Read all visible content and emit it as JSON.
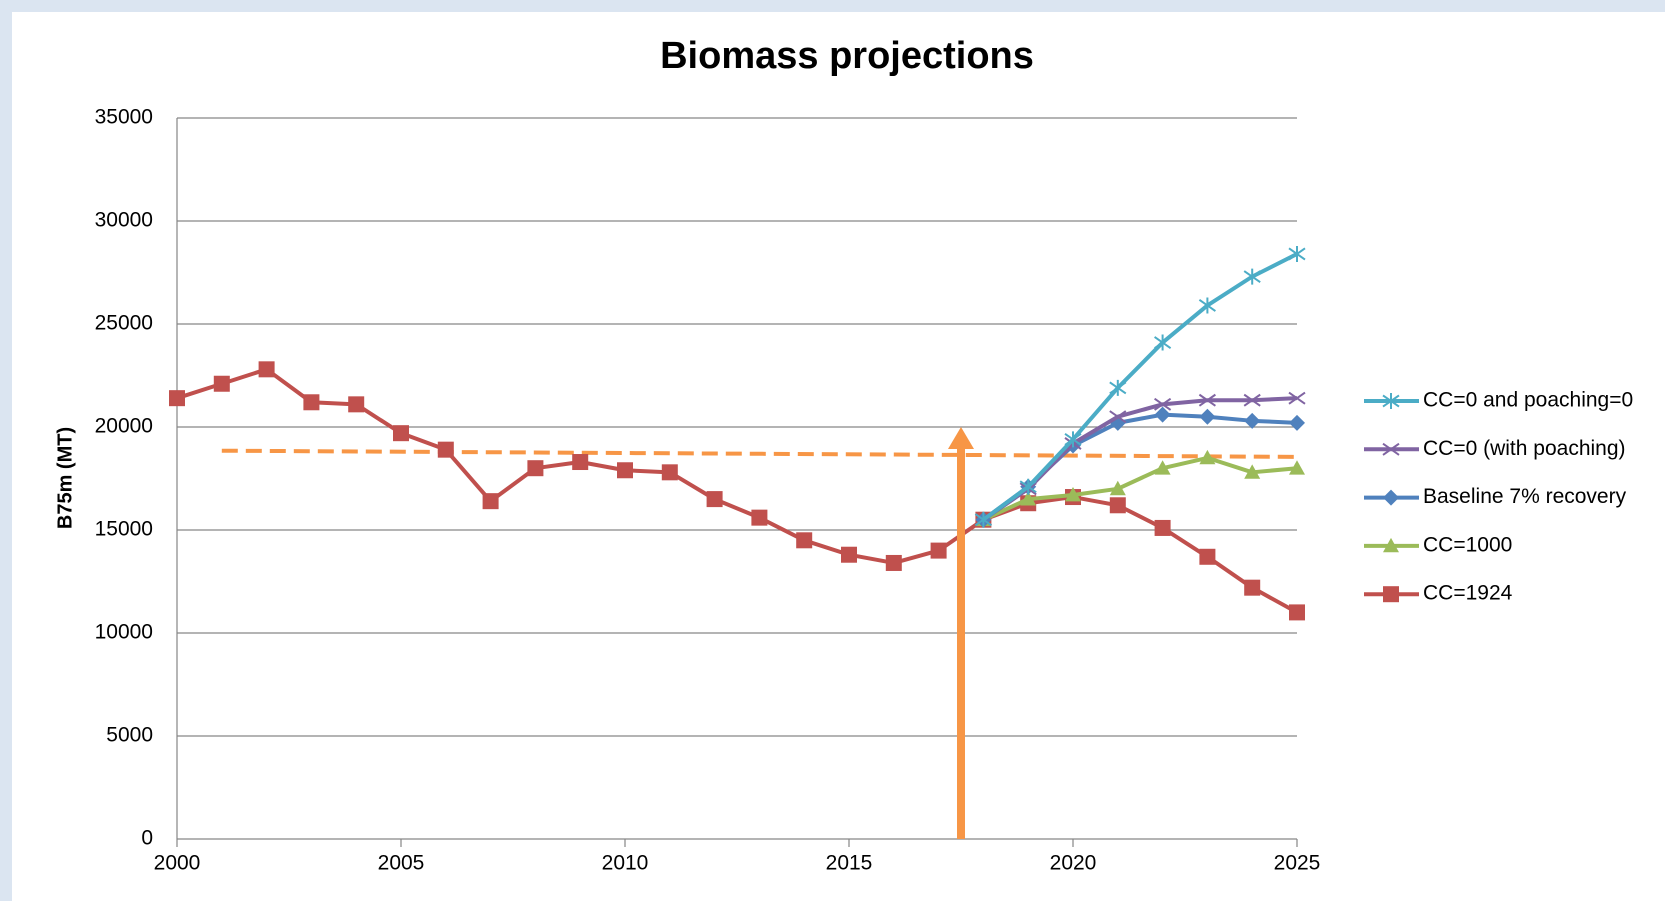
{
  "chart_data": {
    "type": "line",
    "title": "Biomass projections",
    "y_label": "B75m (MT)",
    "x": [
      2000,
      2001,
      2002,
      2003,
      2004,
      2005,
      2006,
      2007,
      2008,
      2009,
      2010,
      2011,
      2012,
      2013,
      2014,
      2015,
      2016,
      2017,
      2018,
      2019,
      2020,
      2021,
      2022,
      2023,
      2024,
      2025
    ],
    "xlim": [
      2000,
      2025
    ],
    "xticks": [
      2000,
      2005,
      2010,
      2015,
      2020,
      2025
    ],
    "ylim": [
      0,
      35000
    ],
    "yticks": [
      0,
      5000,
      10000,
      15000,
      20000,
      25000,
      30000,
      35000
    ],
    "grid": true,
    "legend": "right",
    "series": [
      {
        "name": "CC=0 and poaching=0",
        "color": "#4bacc6",
        "marker": "asterisk",
        "values": [
          null,
          null,
          null,
          null,
          null,
          null,
          null,
          null,
          null,
          null,
          null,
          null,
          null,
          null,
          null,
          null,
          null,
          null,
          15500,
          17100,
          19400,
          21900,
          24100,
          25900,
          27300,
          28400
        ]
      },
      {
        "name": "CC=0 (with poaching)",
        "color": "#8064a2",
        "marker": "x",
        "values": [
          null,
          null,
          null,
          null,
          null,
          null,
          null,
          null,
          null,
          null,
          null,
          null,
          null,
          null,
          null,
          null,
          null,
          null,
          15500,
          17000,
          19200,
          20500,
          21100,
          21300,
          21300,
          21400
        ]
      },
      {
        "name": "Baseline 7% recovery",
        "color": "#4f81bd",
        "marker": "diamond",
        "values": [
          null,
          null,
          null,
          null,
          null,
          null,
          null,
          null,
          null,
          null,
          null,
          null,
          null,
          null,
          null,
          null,
          null,
          null,
          15500,
          17100,
          19100,
          20200,
          20600,
          20500,
          20300,
          20200
        ]
      },
      {
        "name": "CC=1000",
        "color": "#9bbb59",
        "marker": "triangle",
        "values": [
          null,
          null,
          null,
          null,
          null,
          null,
          null,
          null,
          null,
          null,
          null,
          null,
          null,
          null,
          null,
          null,
          null,
          null,
          15500,
          16500,
          16700,
          17000,
          18000,
          18500,
          17800,
          18000
        ]
      },
      {
        "name": "CC=1924",
        "color": "#c0504d",
        "marker": "square",
        "values": [
          21400,
          22100,
          22800,
          21200,
          21100,
          19700,
          18900,
          16400,
          18000,
          18300,
          17900,
          17800,
          16500,
          15600,
          14500,
          13800,
          13400,
          14000,
          15500,
          16300,
          16600,
          16200,
          15100,
          13700,
          12200,
          11000
        ]
      }
    ],
    "reference_line": {
      "color": "#f79646",
      "x": [
        2001,
        2025
      ],
      "values": [
        18850,
        18550
      ]
    },
    "arrow": {
      "color": "#f79646",
      "x": 2017.5,
      "y": [
        0,
        20000
      ]
    }
  }
}
